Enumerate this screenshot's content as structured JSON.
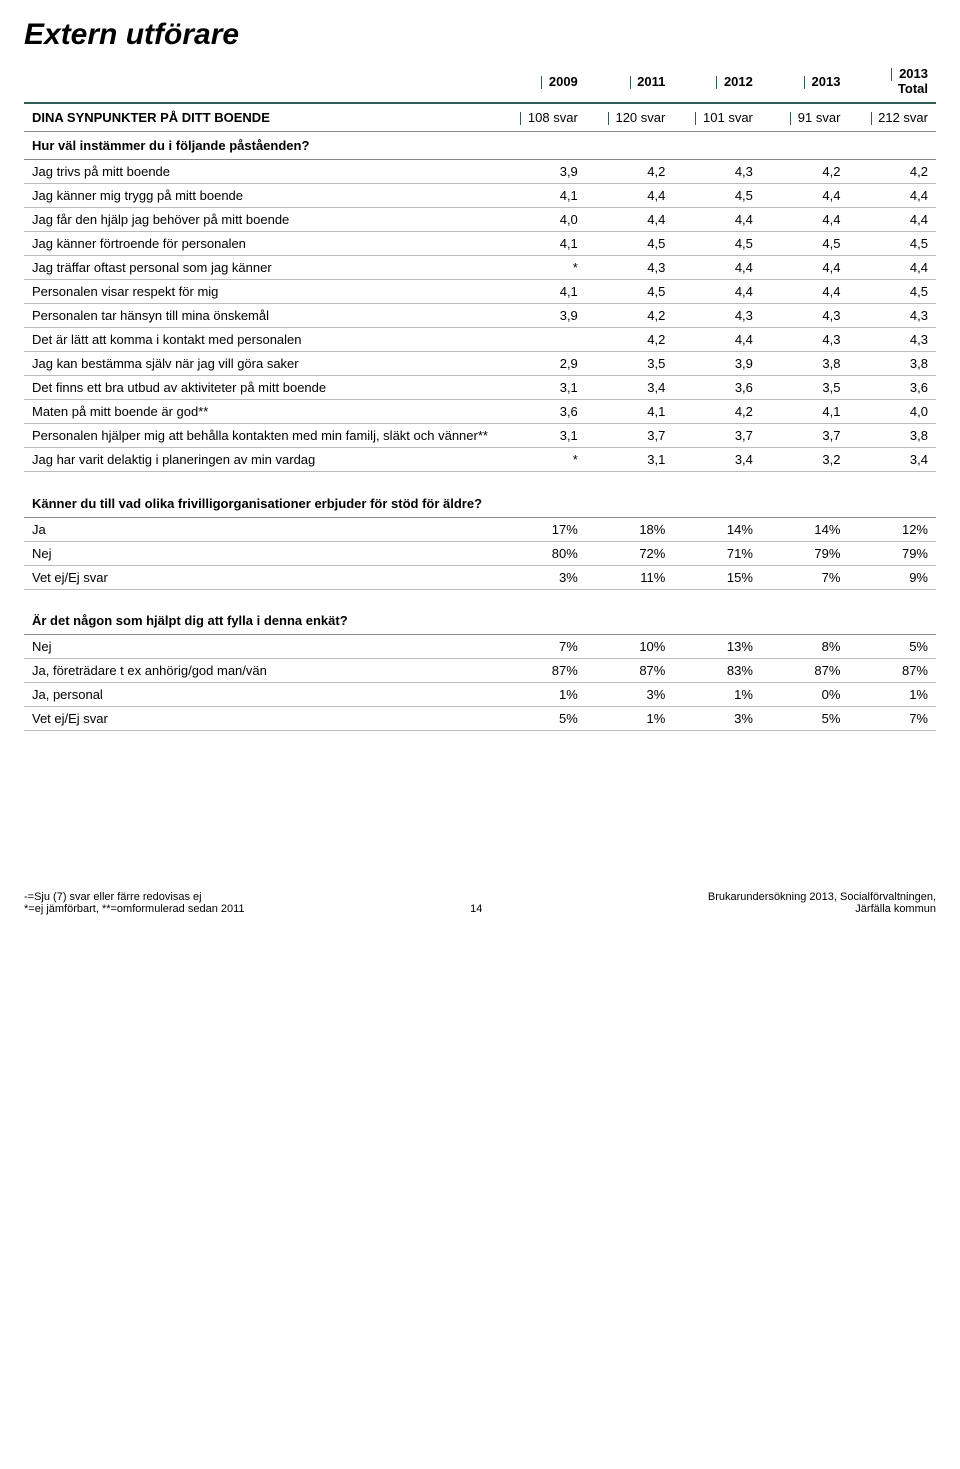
{
  "title": "Extern utförare",
  "years": [
    "2009",
    "2011",
    "2012",
    "2013",
    "2013 Total"
  ],
  "section1": {
    "heading": "DINA SYNPUNKTER PÅ DITT BOENDE",
    "heading_vals": [
      "108 svar",
      "120 svar",
      "101 svar",
      "91 svar",
      "212 svar"
    ],
    "sub": "Hur väl instämmer du i följande påståenden?",
    "rows": [
      {
        "label": "Jag trivs på mitt boende",
        "v": [
          "3,9",
          "4,2",
          "4,3",
          "4,2",
          "4,2"
        ]
      },
      {
        "label": "Jag känner mig trygg på mitt boende",
        "v": [
          "4,1",
          "4,4",
          "4,5",
          "4,4",
          "4,4"
        ]
      },
      {
        "label": "Jag får den hjälp jag behöver på mitt boende",
        "v": [
          "4,0",
          "4,4",
          "4,4",
          "4,4",
          "4,4"
        ]
      },
      {
        "label": "Jag känner förtroende för personalen",
        "v": [
          "4,1",
          "4,5",
          "4,5",
          "4,5",
          "4,5"
        ]
      },
      {
        "label": "Jag träffar oftast personal som jag känner",
        "v": [
          "*",
          "4,3",
          "4,4",
          "4,4",
          "4,4"
        ]
      },
      {
        "label": "Personalen visar respekt för mig",
        "v": [
          "4,1",
          "4,5",
          "4,4",
          "4,4",
          "4,5"
        ]
      },
      {
        "label": "Personalen tar hänsyn till mina önskemål",
        "v": [
          "3,9",
          "4,2",
          "4,3",
          "4,3",
          "4,3"
        ]
      },
      {
        "label": "Det är lätt att komma i kontakt med personalen",
        "v": [
          "",
          "4,2",
          "4,4",
          "4,3",
          "4,3"
        ]
      },
      {
        "label": "Jag kan bestämma själv när jag vill göra saker",
        "v": [
          "2,9",
          "3,5",
          "3,9",
          "3,8",
          "3,8"
        ]
      },
      {
        "label": "Det finns ett bra utbud av aktiviteter på mitt boende",
        "v": [
          "3,1",
          "3,4",
          "3,6",
          "3,5",
          "3,6"
        ]
      },
      {
        "label": "Maten på mitt boende är god**",
        "v": [
          "3,6",
          "4,1",
          "4,2",
          "4,1",
          "4,0"
        ]
      },
      {
        "label": "Personalen hjälper mig att behålla kontakten med min familj, släkt och vänner**",
        "v": [
          "3,1",
          "3,7",
          "3,7",
          "3,7",
          "3,8"
        ]
      },
      {
        "label": "Jag har varit delaktig i planeringen av min vardag",
        "v": [
          "*",
          "3,1",
          "3,4",
          "3,2",
          "3,4"
        ]
      }
    ]
  },
  "section2": {
    "heading": "Känner du till vad olika frivilligorganisationer erbjuder för stöd för äldre?",
    "rows": [
      {
        "label": "Ja",
        "v": [
          "17%",
          "18%",
          "14%",
          "14%",
          "12%"
        ]
      },
      {
        "label": "Nej",
        "v": [
          "80%",
          "72%",
          "71%",
          "79%",
          "79%"
        ]
      },
      {
        "label": "Vet ej/Ej svar",
        "v": [
          "3%",
          "11%",
          "15%",
          "7%",
          "9%"
        ]
      }
    ]
  },
  "section3": {
    "heading": "Är det någon som hjälpt dig att fylla i denna enkät?",
    "rows": [
      {
        "label": "Nej",
        "v": [
          "7%",
          "10%",
          "13%",
          "8%",
          "5%"
        ]
      },
      {
        "label": "Ja, företrädare t ex anhörig/god man/vän",
        "v": [
          "87%",
          "87%",
          "83%",
          "87%",
          "87%"
        ]
      },
      {
        "label": "Ja, personal",
        "v": [
          "1%",
          "3%",
          "1%",
          "0%",
          "1%"
        ]
      },
      {
        "label": "Vet ej/Ej svar",
        "v": [
          "5%",
          "1%",
          "3%",
          "5%",
          "7%"
        ]
      }
    ]
  },
  "footer": {
    "left1": "-=Sju (7) svar eller färre redovisas ej",
    "left2": "*=ej jämförbart, **=omformulerad sedan 2011",
    "page": "14",
    "right1": "Brukarundersökning 2013, Socialförvaltningen,",
    "right2": "Järfälla kommun"
  }
}
